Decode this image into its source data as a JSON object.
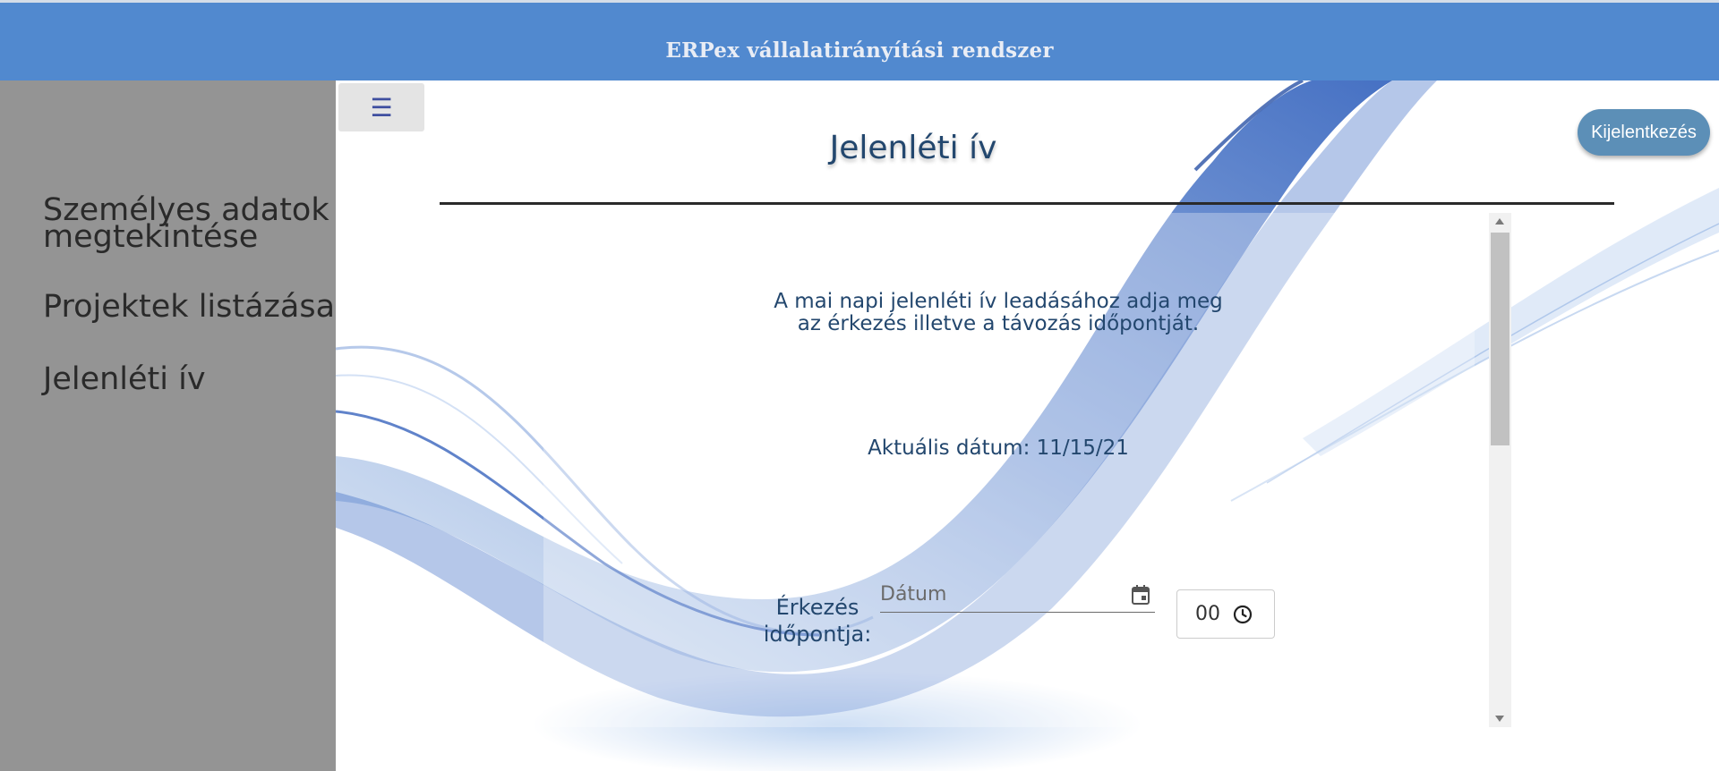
{
  "header": {
    "title": "ERPex vállalatirányítási rendszer"
  },
  "sidebar": {
    "items": [
      {
        "label": "Személyes adatok megtekintése"
      },
      {
        "label": "Projektek listázása"
      },
      {
        "label": "Jelenléti ív"
      }
    ]
  },
  "toolbar": {
    "menu_icon": "menu-icon"
  },
  "account": {
    "logout_label": "Kijelentkezés"
  },
  "page": {
    "title": "Jelenléti ív",
    "instructions_line1": "A mai napi jelenléti ív leadásához adja meg",
    "instructions_line2": "az érkezés illetve a távozás időpontját.",
    "current_date": "Aktuális dátum: 11/15/21"
  },
  "form": {
    "arrival_label_line1": "Érkezés",
    "arrival_label_line2": "időpontja:",
    "date_placeholder": "Dátum",
    "time_value": "00"
  },
  "colors": {
    "header_bg": "#5189cf",
    "sidebar_bg": "#949494",
    "accent_text": "#23476e",
    "logout_bg": "#5c8fb7"
  }
}
